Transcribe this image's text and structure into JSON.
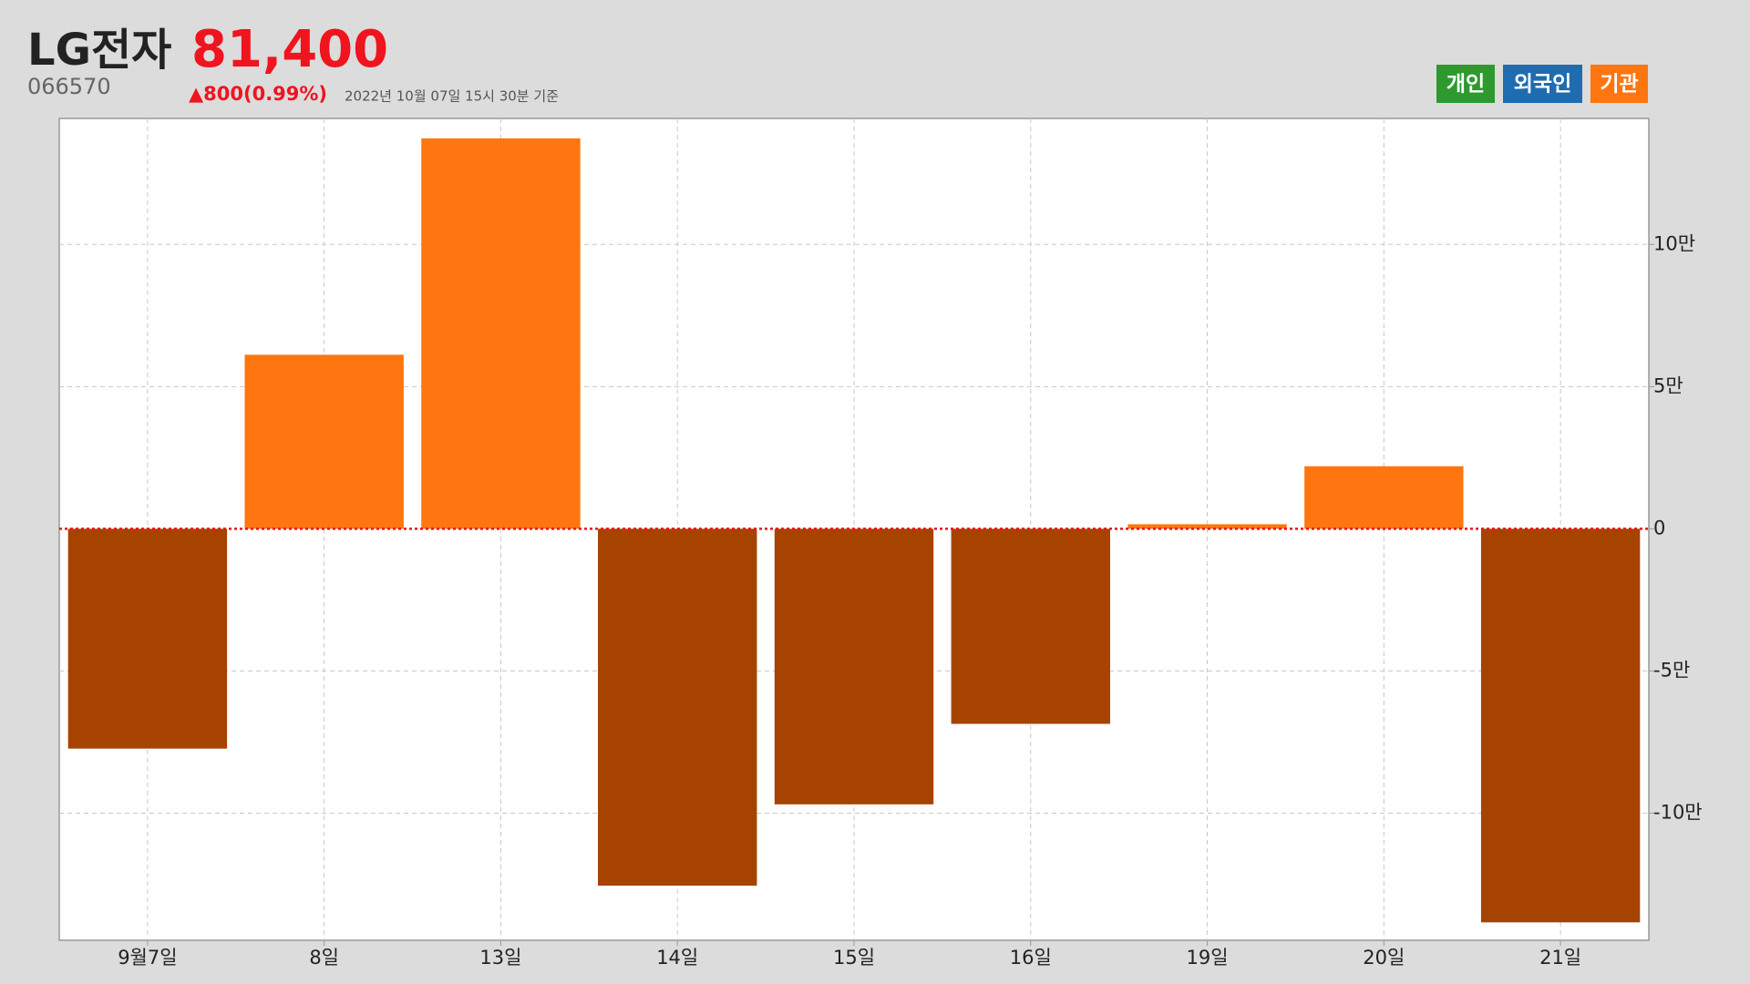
{
  "chart_data": {
    "type": "bar",
    "title": "LG전자",
    "price": "81,400",
    "code": "066570",
    "change": "▲800(0.99%)",
    "timestamp": "2022년 10월 07일 15시 30분 기준",
    "buttons": [
      {
        "name": "개인",
        "color": "#2e9a2e"
      },
      {
        "name": "외국인",
        "color": "#1f6cb0"
      }
    ],
    "categories": [
      "9월7일",
      "8일",
      "13일",
      "14일",
      "15일",
      "16일",
      "19일",
      "20일",
      "21일"
    ],
    "series": [
      {
        "name": "기관",
        "color": "#ff7510",
        "negative_color": "#a64300",
        "values": [
          -77300,
          61200,
          137300,
          -125500,
          -96900,
          -68600,
          1600,
          22000,
          -138400
        ]
      }
    ],
    "ylim": [
      -144700,
      144300
    ],
    "yticks": [
      {
        "value": -100000,
        "label": "-10만"
      },
      {
        "value": -50000,
        "label": "-5만"
      },
      0,
      {
        "value": 50000,
        "label": "5만"
      },
      {
        "value": 100000,
        "label": "10만"
      }
    ],
    "grid": true
  }
}
